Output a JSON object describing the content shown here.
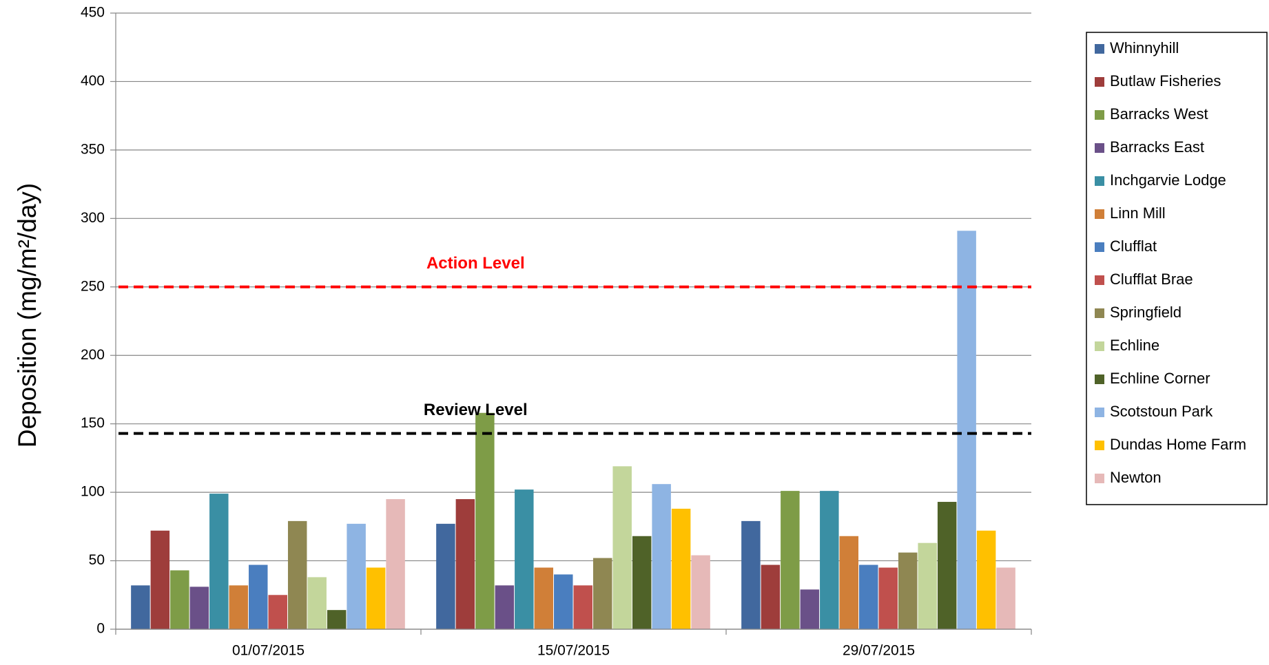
{
  "chart_data": {
    "type": "bar",
    "y_label": "Deposition (mg/m²/day)",
    "categories": [
      "01/07/2015",
      "15/07/2015",
      "29/07/2015"
    ],
    "ylim": [
      0,
      450
    ],
    "yticks": [
      0,
      50,
      100,
      150,
      200,
      250,
      300,
      350,
      400,
      450
    ],
    "grid": true,
    "legend": "right",
    "series": [
      {
        "name": "Whinnyhill",
        "color": "#41689e",
        "values": [
          32,
          77,
          79
        ]
      },
      {
        "name": "Butlaw Fisheries",
        "color": "#9e3d3b",
        "values": [
          72,
          95,
          47
        ]
      },
      {
        "name": "Barracks West",
        "color": "#7e9c47",
        "values": [
          43,
          158,
          101
        ]
      },
      {
        "name": "Barracks East",
        "color": "#6a5088",
        "values": [
          31,
          32,
          29
        ]
      },
      {
        "name": "Inchgarvie Lodge",
        "color": "#3a8fa4",
        "values": [
          99,
          102,
          101
        ]
      },
      {
        "name": "Linn Mill",
        "color": "#d07f38",
        "values": [
          32,
          45,
          68
        ]
      },
      {
        "name": "Clufflat",
        "color": "#4a7ebf",
        "values": [
          47,
          40,
          47
        ]
      },
      {
        "name": "Clufflat Brae",
        "color": "#c0504d",
        "values": [
          25,
          32,
          45
        ]
      },
      {
        "name": "Springfield",
        "color": "#8f8752",
        "values": [
          79,
          52,
          56
        ]
      },
      {
        "name": "Echline",
        "color": "#c3d69b",
        "values": [
          38,
          119,
          63
        ]
      },
      {
        "name": "Echline Corner",
        "color": "#4f6228",
        "values": [
          14,
          68,
          93
        ]
      },
      {
        "name": "Scotstoun Park",
        "color": "#8eb4e3",
        "values": [
          77,
          106,
          291
        ]
      },
      {
        "name": "Dundas Home Farm",
        "color": "#ffc000",
        "values": [
          45,
          88,
          72
        ]
      },
      {
        "name": "Newton",
        "color": "#e6b9b8",
        "values": [
          95,
          54,
          45
        ]
      }
    ],
    "reference_lines": [
      {
        "label": "Action Level",
        "value": 250,
        "color": "#ff0000"
      },
      {
        "label": "Review Level",
        "value": 143,
        "color": "#000000"
      }
    ]
  }
}
